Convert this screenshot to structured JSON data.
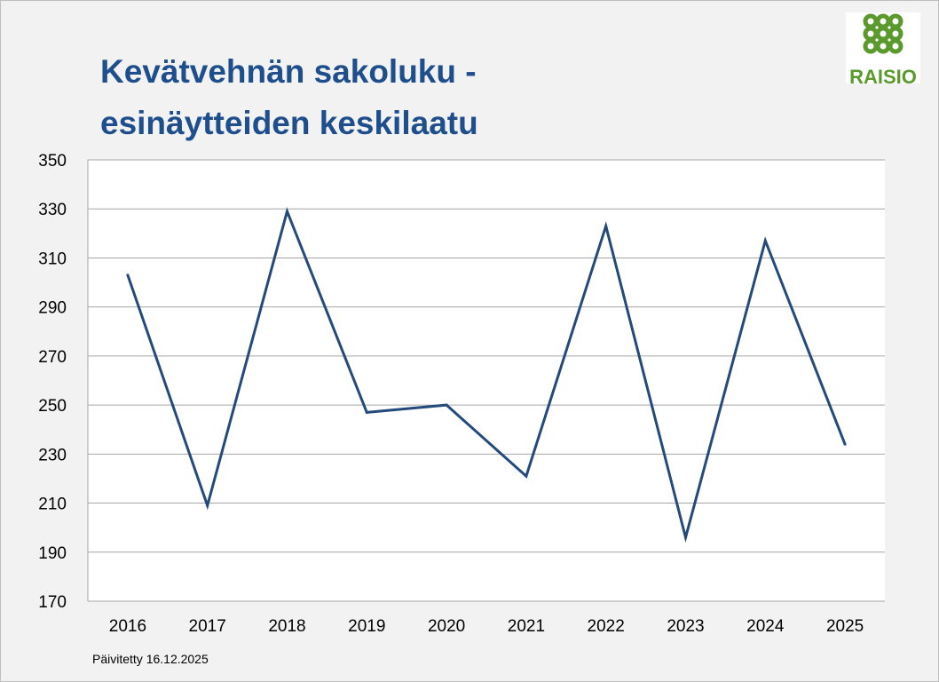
{
  "header": {
    "title_line1": "Kevätvehnän sakoluku -",
    "title_line2": "esinäytteiden keskilaatu"
  },
  "logo": {
    "text": "RAISIO",
    "icon": "raisio-logo-icon",
    "color": "#5a9a2c"
  },
  "footnote": "Päivitetty 16.12.2025",
  "colors": {
    "title": "#1f4e8c",
    "line": "#244a7c",
    "grid": "#a6a6a6",
    "plot_background": "#ffffff",
    "page_background": "#f2f2f2"
  },
  "chart_data": {
    "type": "line",
    "title": "Kevätvehnän sakoluku - esinäytteiden keskilaatu",
    "categories": [
      "2016",
      "2017",
      "2018",
      "2019",
      "2020",
      "2021",
      "2022",
      "2023",
      "2024",
      "2025"
    ],
    "series": [
      {
        "values": [
          303,
          209,
          329,
          247,
          250,
          221,
          323,
          196,
          317,
          234
        ]
      }
    ],
    "ylim": [
      170,
      350
    ],
    "yticks": [
      170,
      190,
      210,
      230,
      250,
      270,
      290,
      310,
      330,
      350
    ],
    "grid": true,
    "legend": "none",
    "xlabel": "",
    "ylabel": ""
  }
}
